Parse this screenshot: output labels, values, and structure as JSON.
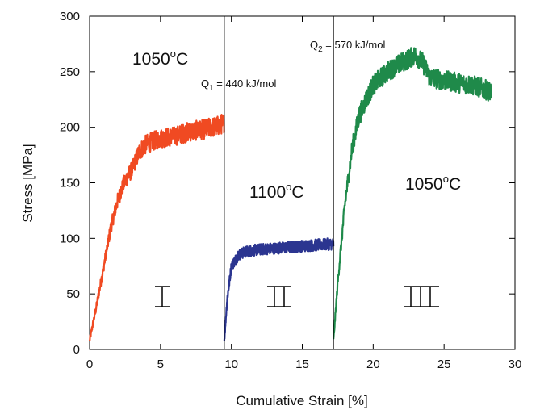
{
  "chart_data": {
    "type": "line",
    "xlabel": "Cumulative Strain [%]",
    "ylabel": "Stress [MPa]",
    "xlim": [
      0,
      30
    ],
    "ylim": [
      0,
      300
    ],
    "xticks": [
      "0",
      "5",
      "10",
      "15",
      "20",
      "25",
      "30"
    ],
    "yticks": [
      "0",
      "50",
      "100",
      "150",
      "200",
      "250",
      "300"
    ],
    "grid": false,
    "vlines": [
      9.5,
      17.2
    ],
    "series": [
      {
        "color": "#f04a22",
        "x": [
          0.0,
          0.5,
          1.0,
          1.5,
          2.0,
          2.5,
          3.0,
          3.5,
          4.0,
          5.0,
          6.0,
          7.0,
          8.0,
          9.0,
          9.5
        ],
        "y": [
          8,
          40,
          75,
          110,
          135,
          152,
          162,
          178,
          185,
          190,
          192,
          196,
          198,
          201,
          204
        ]
      },
      {
        "color": "#2b3590",
        "x": [
          9.5,
          9.7,
          10.0,
          10.5,
          11.0,
          12.0,
          13.0,
          14.0,
          15.0,
          16.0,
          17.2
        ],
        "y": [
          8,
          45,
          75,
          85,
          88,
          90,
          91,
          92,
          93,
          94,
          95
        ]
      },
      {
        "color": "#1f8a4a",
        "x": [
          17.2,
          17.5,
          18.0,
          18.5,
          19.0,
          19.5,
          20.0,
          21.0,
          22.0,
          23.0,
          23.5,
          24.0,
          25.0,
          26.0,
          27.0,
          28.3
        ],
        "y": [
          8,
          60,
          130,
          180,
          210,
          225,
          238,
          250,
          258,
          265,
          258,
          245,
          242,
          240,
          238,
          232
        ]
      }
    ],
    "annotations": {
      "temp_1": "1050",
      "temp_2": "1100",
      "temp_3": "1050",
      "deg": "o",
      "temp_unit": "C",
      "q1_sym": "Q",
      "q1_sub": "1",
      "q1_text": " = 440 kJ/mol",
      "q2_sym": "Q",
      "q2_sub": "2",
      "q2_text": " = 570 kJ/mol",
      "stage_1": "I",
      "stage_2": "II",
      "stage_3": "III"
    }
  }
}
